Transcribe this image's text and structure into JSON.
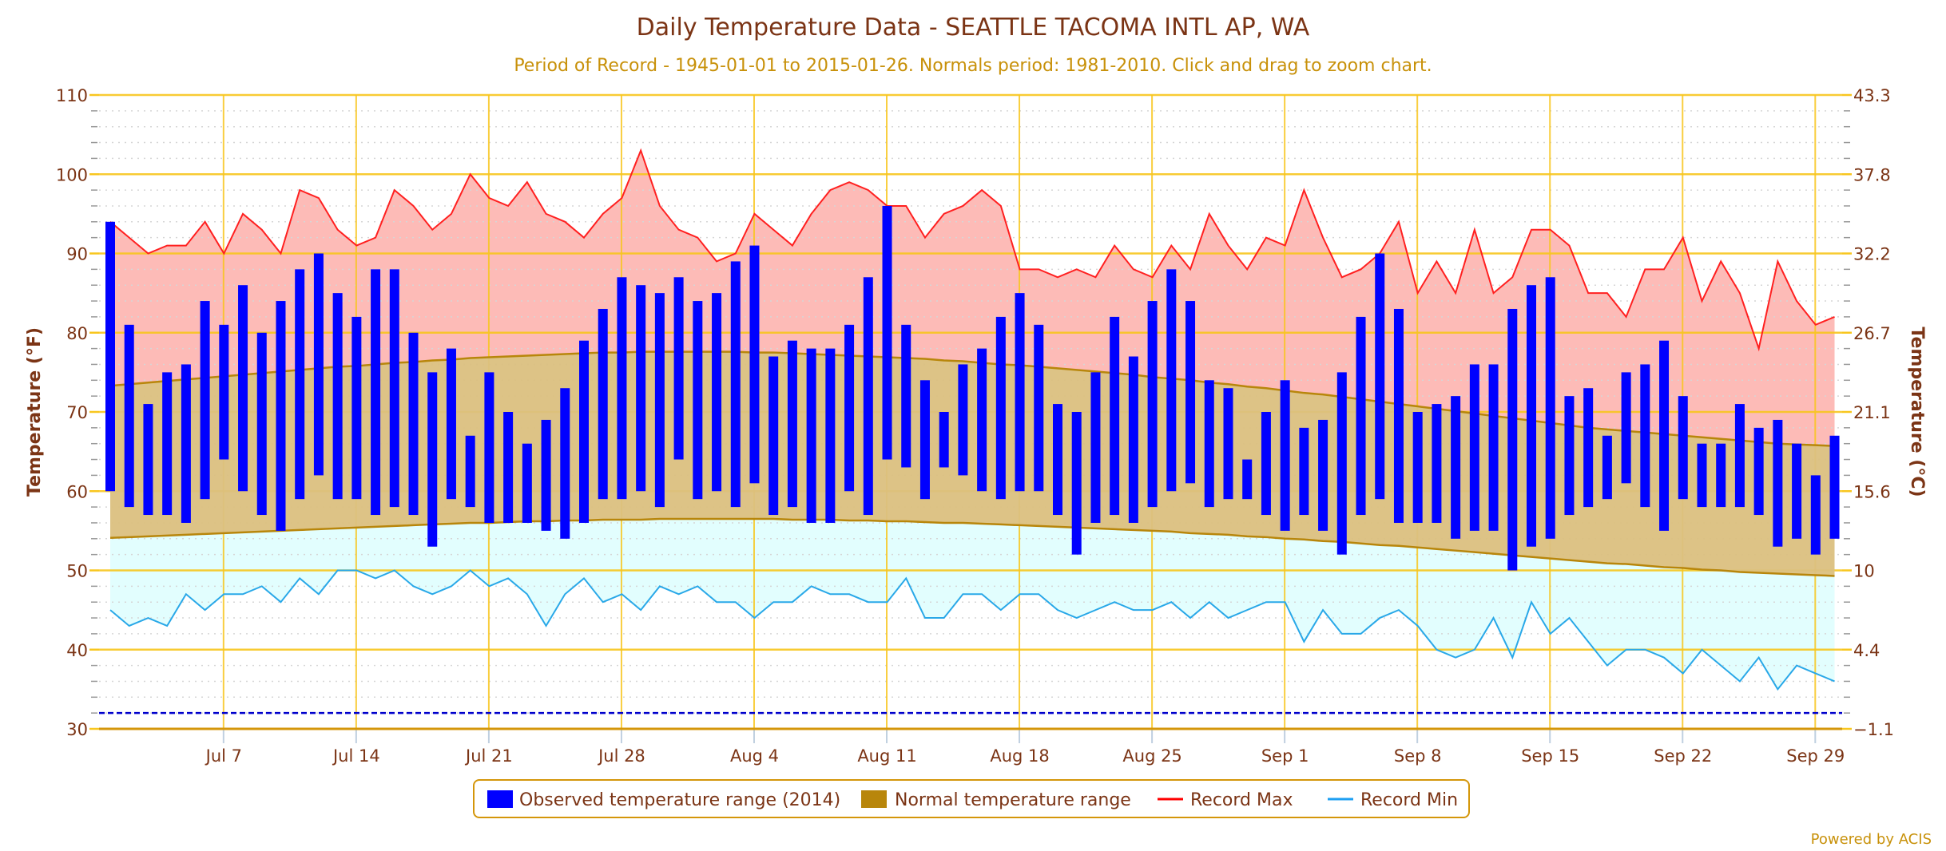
{
  "chart_data": {
    "type": "bar",
    "title": "Daily Temperature Data - SEATTLE TACOMA INTL AP, WA",
    "subtitle": "Period of Record - 1945-01-01 to 2015-01-26. Normals period: 1981-2010. Click and drag to zoom chart.",
    "ylabel_left": "Temperature (°F)",
    "ylabel_right": "Temperature (°C)",
    "ylim": [
      30,
      110
    ],
    "y_ticks_left": [
      "110",
      "100",
      "90",
      "80",
      "70",
      "60",
      "50",
      "40",
      "30"
    ],
    "y_ticks_left_values": [
      110,
      100,
      90,
      80,
      70,
      60,
      50,
      40,
      30
    ],
    "y_ticks_right": [
      "43.3",
      "37.8",
      "32.2",
      "26.7",
      "21.1",
      "15.6",
      "10",
      "4.4",
      "-1.1"
    ],
    "x_ticks": [
      "Jul 7",
      "Jul 14",
      "Jul 21",
      "Jul 28",
      "Aug 4",
      "Aug 11",
      "Aug 18",
      "Aug 25",
      "Sep 1",
      "Sep 8",
      "Sep 15",
      "Sep 22",
      "Sep 29"
    ],
    "x_tick_day_index": [
      6,
      13,
      20,
      27,
      34,
      41,
      48,
      55,
      62,
      69,
      76,
      83,
      90
    ],
    "x_start_date": "Jul 1",
    "freezing_line": 32,
    "grid": true,
    "legend_position": "bottom-center",
    "legend": [
      {
        "label": "Observed temperature range (2014)",
        "color": "#0000ff",
        "kind": "box"
      },
      {
        "label": "Normal temperature range",
        "color": "#b8860b",
        "kind": "box"
      },
      {
        "label": "Record Max",
        "color": "#ff0000",
        "kind": "line"
      },
      {
        "label": "Record Min",
        "color": "#1e9ff2",
        "kind": "line"
      }
    ],
    "credit": "Powered by ACIS",
    "colors": {
      "observed": "#0000ff",
      "normal_fill": "#dbc080",
      "normal_line": "#b8860b",
      "record_max_line": "#ff2020",
      "record_max_fill": "#fdbbb7",
      "record_min_line": "#29a8e8",
      "record_min_fill": "#e2fefe",
      "grid_major": "#f8c61e",
      "freezing": "#0000cc",
      "text": "#7b3415",
      "subtitle": "#c8910a"
    },
    "series": [
      {
        "name": "Observed High (2014)",
        "values": [
          94,
          81,
          71,
          75,
          76,
          84,
          81,
          86,
          80,
          84,
          88,
          90,
          85,
          82,
          88,
          88,
          80,
          75,
          78,
          67,
          75,
          70,
          66,
          69,
          73,
          79,
          83,
          87,
          86,
          85,
          87,
          84,
          85,
          89,
          91,
          77,
          79,
          78,
          78,
          81,
          87,
          96,
          81,
          74,
          70,
          76,
          78,
          82,
          85,
          81,
          71,
          70,
          75,
          82,
          77,
          84,
          88,
          84,
          74,
          73,
          64,
          70,
          74,
          68,
          69,
          75,
          82,
          90,
          83,
          70,
          71,
          72,
          76,
          76,
          83,
          86,
          87,
          72,
          73,
          67,
          75,
          76,
          79,
          72,
          66,
          66,
          71,
          68,
          69,
          66,
          62,
          67
        ]
      },
      {
        "name": "Observed Low (2014)",
        "values": [
          60,
          58,
          57,
          57,
          56,
          59,
          64,
          60,
          57,
          55,
          59,
          62,
          59,
          59,
          57,
          58,
          57,
          53,
          59,
          58,
          56,
          56,
          56,
          55,
          54,
          56,
          59,
          59,
          60,
          58,
          64,
          59,
          60,
          58,
          61,
          57,
          58,
          56,
          56,
          60,
          57,
          64,
          63,
          59,
          63,
          62,
          60,
          59,
          60,
          60,
          57,
          52,
          56,
          57,
          56,
          58,
          60,
          61,
          58,
          59,
          59,
          57,
          55,
          57,
          55,
          52,
          57,
          59,
          56,
          56,
          56,
          54,
          55,
          55,
          50,
          53,
          54,
          57,
          58,
          59,
          61,
          58,
          55,
          59,
          58,
          58,
          58,
          57,
          53,
          54,
          52,
          54
        ]
      },
      {
        "name": "Normal High",
        "values": [
          73.3,
          73.5,
          73.7,
          73.9,
          74.1,
          74.3,
          74.5,
          74.7,
          74.9,
          75.1,
          75.3,
          75.5,
          75.7,
          75.8,
          76.0,
          76.2,
          76.3,
          76.5,
          76.6,
          76.8,
          76.9,
          77.0,
          77.1,
          77.2,
          77.3,
          77.4,
          77.5,
          77.5,
          77.6,
          77.6,
          77.6,
          77.6,
          77.6,
          77.6,
          77.5,
          77.5,
          77.4,
          77.3,
          77.2,
          77.1,
          77.0,
          76.9,
          76.8,
          76.7,
          76.5,
          76.4,
          76.2,
          76.0,
          75.9,
          75.7,
          75.5,
          75.3,
          75.1,
          74.9,
          74.7,
          74.4,
          74.2,
          74.0,
          73.7,
          73.5,
          73.2,
          73.0,
          72.7,
          72.4,
          72.2,
          71.9,
          71.6,
          71.3,
          71.0,
          70.7,
          70.4,
          70.1,
          69.8,
          69.5,
          69.2,
          68.9,
          68.6,
          68.3,
          68.0,
          67.8,
          67.6,
          67.4,
          67.2,
          67.0,
          66.8,
          66.6,
          66.4,
          66.2,
          66.0,
          65.9,
          65.8,
          65.7
        ]
      },
      {
        "name": "Normal Low",
        "values": [
          54.1,
          54.2,
          54.3,
          54.4,
          54.5,
          54.6,
          54.7,
          54.8,
          54.9,
          55.0,
          55.1,
          55.2,
          55.3,
          55.4,
          55.5,
          55.6,
          55.7,
          55.8,
          55.9,
          56.0,
          56.0,
          56.1,
          56.2,
          56.2,
          56.3,
          56.3,
          56.4,
          56.4,
          56.4,
          56.5,
          56.5,
          56.5,
          56.5,
          56.5,
          56.5,
          56.5,
          56.4,
          56.4,
          56.4,
          56.3,
          56.3,
          56.2,
          56.2,
          56.1,
          56.0,
          56.0,
          55.9,
          55.8,
          55.7,
          55.6,
          55.5,
          55.4,
          55.3,
          55.2,
          55.1,
          55.0,
          54.9,
          54.7,
          54.6,
          54.5,
          54.3,
          54.2,
          54.0,
          53.9,
          53.7,
          53.6,
          53.4,
          53.2,
          53.1,
          52.9,
          52.7,
          52.5,
          52.3,
          52.1,
          51.9,
          51.7,
          51.5,
          51.3,
          51.1,
          50.9,
          50.8,
          50.6,
          50.4,
          50.3,
          50.1,
          50.0,
          49.8,
          49.7,
          49.6,
          49.5,
          49.4,
          49.3
        ]
      },
      {
        "name": "Record Max",
        "values": [
          94,
          92,
          90,
          91,
          91,
          94,
          90,
          95,
          93,
          90,
          98,
          97,
          93,
          91,
          92,
          98,
          96,
          93,
          95,
          100,
          97,
          96,
          99,
          95,
          94,
          92,
          95,
          97,
          103,
          96,
          93,
          92,
          89,
          90,
          95,
          93,
          91,
          95,
          98,
          99,
          98,
          96,
          96,
          92,
          95,
          96,
          98,
          96,
          88,
          88,
          87,
          88,
          87,
          91,
          88,
          87,
          91,
          88,
          95,
          91,
          88,
          92,
          91,
          98,
          92,
          87,
          88,
          90,
          94,
          85,
          89,
          85,
          93,
          85,
          87,
          93,
          93,
          91,
          85,
          85,
          82,
          88,
          88,
          92,
          84,
          89,
          85,
          78,
          89,
          84,
          81,
          82
        ]
      },
      {
        "name": "Record Min",
        "values": [
          45,
          43,
          44,
          43,
          47,
          45,
          47,
          47,
          48,
          46,
          49,
          47,
          50,
          50,
          49,
          50,
          48,
          47,
          48,
          50,
          48,
          49,
          47,
          43,
          47,
          49,
          46,
          47,
          45,
          48,
          47,
          48,
          46,
          46,
          44,
          46,
          46,
          48,
          47,
          47,
          46,
          46,
          49,
          44,
          44,
          47,
          47,
          45,
          47,
          47,
          45,
          44,
          45,
          46,
          45,
          45,
          46,
          44,
          46,
          44,
          45,
          46,
          46,
          41,
          45,
          42,
          42,
          44,
          45,
          43,
          40,
          39,
          40,
          44,
          39,
          46,
          42,
          44,
          41,
          38,
          40,
          40,
          39,
          37,
          40,
          38,
          36,
          39,
          35,
          38,
          37,
          36
        ]
      }
    ]
  }
}
